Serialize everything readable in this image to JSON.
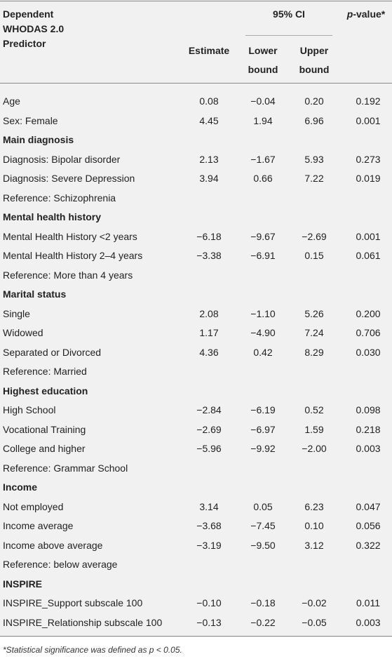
{
  "header": {
    "predictor": [
      "Dependent",
      "WHODAS 2.0",
      "Predictor"
    ],
    "ci": "95% CI",
    "p_value": [
      "p",
      "-value*"
    ],
    "estimate": "Estimate",
    "lower": [
      "Lower",
      "bound"
    ],
    "upper": [
      "Upper",
      "bound"
    ]
  },
  "rows": [
    {
      "label": "Age",
      "cells": [
        "0.08",
        "−0.04",
        "0.20",
        "0.192"
      ]
    },
    {
      "label": "Sex: Female",
      "cells": [
        "4.45",
        "1.94",
        "6.96",
        "0.001"
      ]
    },
    {
      "section": "Main diagnosis"
    },
    {
      "label": "Diagnosis: Bipolar disorder",
      "cells": [
        "2.13",
        "−1.67",
        "5.93",
        "0.273"
      ]
    },
    {
      "label": "Diagnosis: Severe Depression",
      "cells": [
        "3.94",
        "0.66",
        "7.22",
        "0.019"
      ]
    },
    {
      "label": "Reference: Schizophrenia"
    },
    {
      "section": "Mental health history"
    },
    {
      "label": "Mental Health History <2 years",
      "cells": [
        "−6.18",
        "−9.67",
        "−2.69",
        "0.001"
      ]
    },
    {
      "label": "Mental Health History 2–4 years",
      "cells": [
        "−3.38",
        "−6.91",
        "0.15",
        "0.061"
      ]
    },
    {
      "label": "Reference: More than 4 years"
    },
    {
      "section": "Marital status"
    },
    {
      "label": "Single",
      "cells": [
        "2.08",
        "−1.10",
        "5.26",
        "0.200"
      ]
    },
    {
      "label": "Widowed",
      "cells": [
        "1.17",
        "−4.90",
        "7.24",
        "0.706"
      ]
    },
    {
      "label": "Separated or Divorced",
      "cells": [
        "4.36",
        "0.42",
        "8.29",
        "0.030"
      ]
    },
    {
      "label": "Reference: Married"
    },
    {
      "section": "Highest education"
    },
    {
      "label": "High School",
      "cells": [
        "−2.84",
        "−6.19",
        "0.52",
        "0.098"
      ]
    },
    {
      "label": "Vocational Training",
      "cells": [
        "−2.69",
        "−6.97",
        "1.59",
        "0.218"
      ]
    },
    {
      "label": "College and higher",
      "cells": [
        "−5.96",
        "−9.92",
        "−2.00",
        "0.003"
      ]
    },
    {
      "label": "Reference: Grammar School"
    },
    {
      "section": "Income"
    },
    {
      "label": "Not employed",
      "cells": [
        "3.14",
        "0.05",
        "6.23",
        "0.047"
      ]
    },
    {
      "label": "Income average",
      "cells": [
        "−3.68",
        "−7.45",
        "0.10",
        "0.056"
      ]
    },
    {
      "label": "Income above average",
      "cells": [
        "−3.19",
        "−9.50",
        "3.12",
        "0.322"
      ]
    },
    {
      "label": "Reference: below average"
    },
    {
      "section": "INSPIRE"
    },
    {
      "label": "INSPIRE_Support subscale 100",
      "cells": [
        "−0.10",
        "−0.18",
        "−0.02",
        "0.011"
      ]
    },
    {
      "label": "INSPIRE_Relationship subscale 100",
      "cells": [
        "−0.13",
        "−0.22",
        "−0.05",
        "0.003"
      ]
    }
  ],
  "footnote": [
    "*Statistical significance was defined as ",
    "p",
    " < 0.05."
  ]
}
